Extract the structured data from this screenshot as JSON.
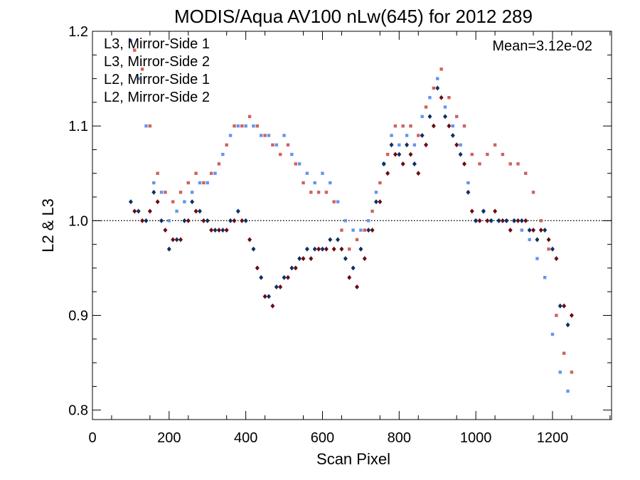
{
  "chart_data": {
    "type": "scatter",
    "title": "MODIS/Aqua AV100 nLw(645) for 2012 289",
    "xlabel": "Scan Pixel",
    "ylabel": "L2 & L3",
    "xlim": [
      0,
      1354
    ],
    "ylim": [
      0.79,
      1.2
    ],
    "xticks": [
      0,
      200,
      400,
      600,
      800,
      1000,
      1200
    ],
    "yticks": [
      0.8,
      0.9,
      1.0,
      1.1,
      1.2
    ],
    "ytick_labels": [
      "0.8",
      "0.9",
      "1.0",
      "1.1",
      "1.2"
    ],
    "reference_line": 1.0,
    "annotation": "Mean=3.12e-02",
    "annotation_color": "#cc5a5a",
    "legend_position": "top-left",
    "series": [
      {
        "name": "L3, Mirror-Side 1",
        "color": "#0d2f63",
        "marker": "diamond",
        "x": [
          100,
          120,
          140,
          160,
          180,
          200,
          220,
          240,
          260,
          280,
          300,
          320,
          340,
          360,
          380,
          400,
          420,
          440,
          460,
          480,
          500,
          520,
          540,
          560,
          580,
          600,
          620,
          640,
          660,
          680,
          700,
          720,
          740,
          760,
          780,
          800,
          820,
          840,
          860,
          880,
          900,
          920,
          940,
          960,
          980,
          1000,
          1020,
          1040,
          1060,
          1080,
          1100,
          1120,
          1140,
          1160,
          1180,
          1200,
          1220,
          1240
        ],
        "y": [
          1.02,
          1.01,
          1.0,
          1.03,
          1.0,
          0.97,
          0.98,
          1.0,
          1.02,
          1.01,
          1.0,
          0.99,
          0.99,
          1.0,
          1.01,
          1.0,
          0.97,
          0.94,
          0.92,
          0.93,
          0.94,
          0.95,
          0.96,
          0.97,
          0.97,
          0.97,
          0.98,
          0.98,
          0.96,
          0.95,
          0.97,
          0.99,
          1.02,
          1.06,
          1.08,
          1.07,
          1.08,
          1.06,
          1.09,
          1.11,
          1.14,
          1.11,
          1.09,
          1.07,
          1.03,
          1.0,
          1.01,
          1.0,
          1.0,
          1.0,
          1.0,
          1.0,
          0.99,
          0.98,
          0.99,
          0.97,
          0.91,
          0.89
        ]
      },
      {
        "name": "L3, Mirror-Side 2",
        "color": "#6b0a12",
        "marker": "diamond",
        "x": [
          110,
          130,
          150,
          170,
          190,
          210,
          230,
          250,
          270,
          290,
          310,
          330,
          350,
          370,
          390,
          410,
          430,
          450,
          470,
          490,
          510,
          530,
          550,
          570,
          590,
          610,
          630,
          650,
          670,
          690,
          710,
          730,
          750,
          770,
          790,
          810,
          830,
          850,
          870,
          890,
          910,
          930,
          950,
          970,
          990,
          1010,
          1030,
          1050,
          1070,
          1090,
          1110,
          1130,
          1150,
          1170,
          1190,
          1210,
          1230,
          1250
        ],
        "y": [
          1.01,
          1.0,
          1.01,
          1.02,
          0.99,
          0.98,
          0.98,
          1.0,
          1.01,
          1.0,
          0.99,
          0.99,
          0.99,
          1.0,
          1.0,
          0.98,
          0.95,
          0.92,
          0.91,
          0.93,
          0.94,
          0.95,
          0.96,
          0.96,
          0.97,
          0.97,
          0.97,
          0.97,
          0.94,
          0.93,
          0.96,
          0.99,
          1.02,
          1.05,
          1.07,
          1.06,
          1.07,
          1.05,
          1.08,
          1.1,
          1.13,
          1.1,
          1.08,
          1.06,
          1.01,
          1.0,
          1.0,
          1.01,
          1.0,
          0.99,
          1.0,
          1.0,
          0.99,
          0.99,
          0.98,
          0.96,
          0.91,
          0.9
        ]
      },
      {
        "name": "L2, Mirror-Side 1",
        "color": "#6495ed",
        "marker": "square",
        "x": [
          100,
          120,
          140,
          160,
          180,
          200,
          220,
          240,
          260,
          280,
          300,
          320,
          340,
          360,
          380,
          400,
          420,
          440,
          460,
          480,
          500,
          520,
          540,
          560,
          580,
          600,
          620,
          640,
          660,
          680,
          700,
          720,
          740,
          760,
          780,
          800,
          820,
          840,
          860,
          880,
          900,
          920,
          940,
          960,
          980,
          1000,
          1020,
          1040,
          1060,
          1080,
          1100,
          1120,
          1140,
          1160,
          1180,
          1200,
          1220,
          1240
        ],
        "y": [
          1.19,
          1.15,
          1.1,
          1.04,
          1.03,
          1.0,
          1.01,
          1.02,
          1.03,
          1.04,
          1.04,
          1.05,
          1.07,
          1.09,
          1.1,
          1.1,
          1.1,
          1.09,
          1.09,
          1.08,
          1.09,
          1.07,
          1.06,
          1.05,
          1.04,
          1.05,
          1.04,
          1.02,
          1.0,
          0.99,
          0.99,
          1.0,
          1.03,
          1.06,
          1.09,
          1.08,
          1.09,
          1.08,
          1.11,
          1.13,
          1.15,
          1.12,
          1.1,
          1.08,
          1.04,
          1.0,
          1.01,
          1.0,
          1.0,
          1.0,
          1.0,
          0.99,
          0.98,
          0.96,
          0.94,
          0.88,
          0.84,
          0.82
        ]
      },
      {
        "name": "L2, Mirror-Side 2",
        "color": "#d06060",
        "marker": "square",
        "x": [
          110,
          130,
          150,
          170,
          190,
          210,
          230,
          250,
          270,
          290,
          310,
          330,
          350,
          370,
          390,
          410,
          430,
          450,
          470,
          490,
          510,
          530,
          550,
          570,
          590,
          610,
          630,
          650,
          670,
          690,
          710,
          730,
          750,
          770,
          790,
          810,
          830,
          850,
          870,
          890,
          910,
          930,
          950,
          970,
          990,
          1010,
          1030,
          1050,
          1070,
          1090,
          1110,
          1130,
          1150,
          1170,
          1190,
          1210,
          1230,
          1250
        ],
        "y": [
          1.18,
          1.16,
          1.1,
          1.05,
          1.03,
          1.02,
          1.03,
          1.04,
          1.05,
          1.04,
          1.05,
          1.06,
          1.08,
          1.1,
          1.1,
          1.11,
          1.1,
          1.09,
          1.08,
          1.07,
          1.08,
          1.06,
          1.04,
          1.03,
          1.03,
          1.03,
          1.02,
          0.99,
          0.97,
          0.98,
          0.99,
          1.01,
          1.04,
          1.07,
          1.1,
          1.1,
          1.1,
          1.09,
          1.12,
          1.14,
          1.16,
          1.13,
          1.11,
          1.1,
          1.07,
          1.06,
          1.07,
          1.08,
          1.07,
          1.06,
          1.06,
          1.05,
          1.03,
          1.0,
          0.97,
          0.9,
          0.86,
          0.84
        ]
      }
    ]
  }
}
